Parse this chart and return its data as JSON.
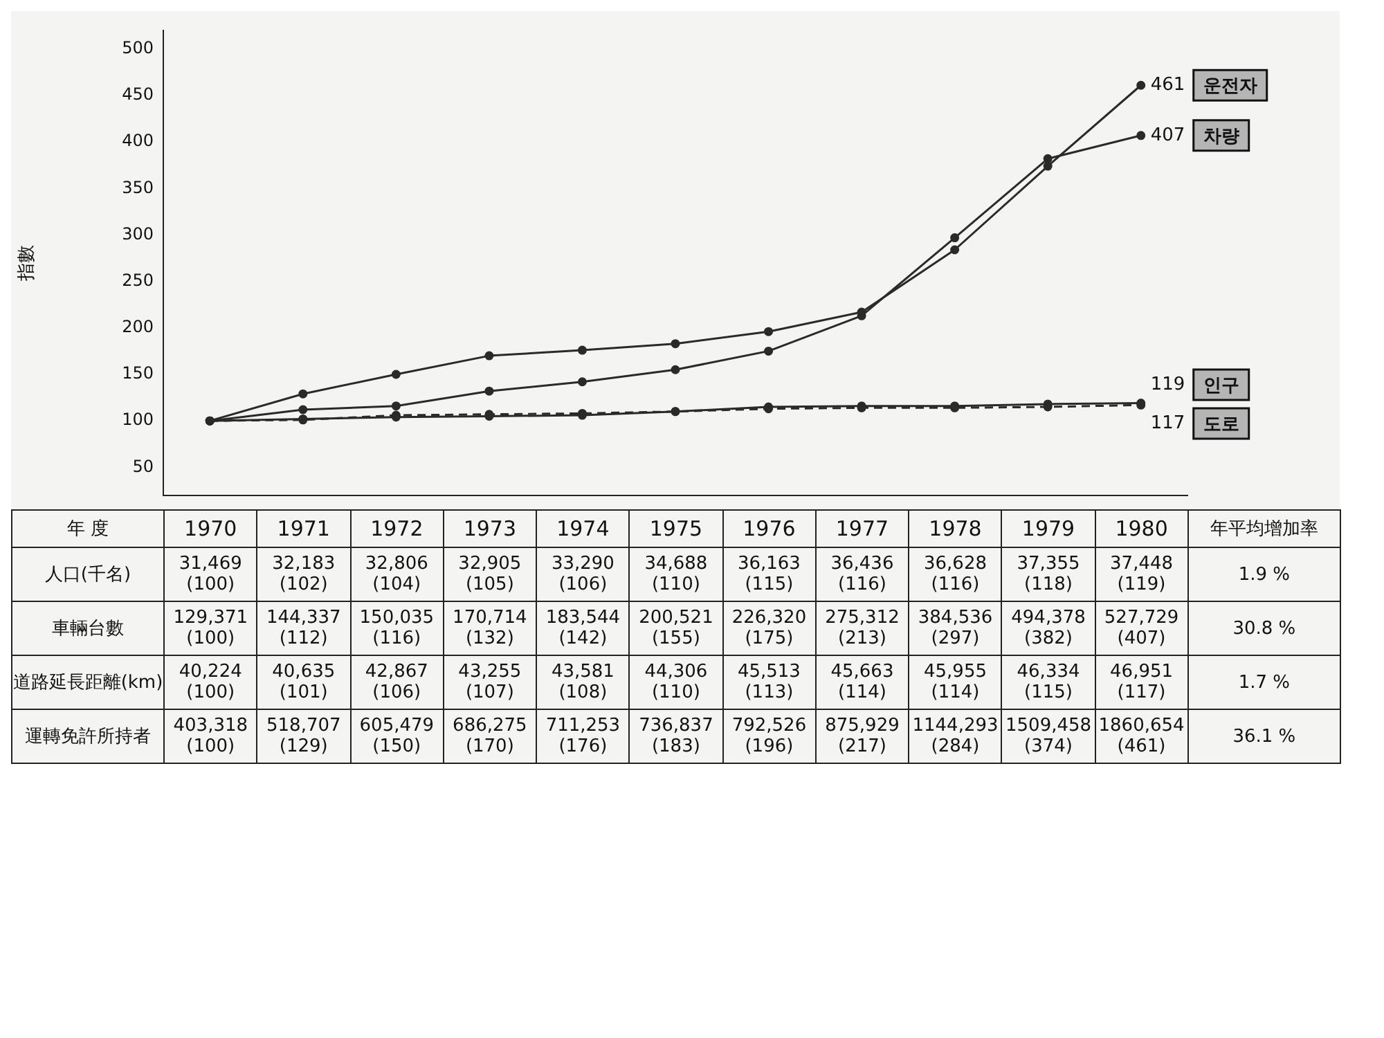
{
  "chart_data": {
    "type": "line",
    "ylabel": "指數",
    "categories": [
      "1970",
      "1971",
      "1972",
      "1973",
      "1974",
      "1975",
      "1976",
      "1977",
      "1978",
      "1979",
      "1980"
    ],
    "series": [
      {
        "name": "인구",
        "color": "#2a2a2a",
        "line_style": "solid",
        "values": [
          100,
          102,
          104,
          105,
          106,
          110,
          115,
          116,
          116,
          118,
          119
        ],
        "value_labels": [
          "31,469\n(100)",
          "32,183\n(102)",
          "32,806\n(104)",
          "32,905\n(105)",
          "33,290\n(106)",
          "34,688\n(110)",
          "36,163\n(115)",
          "36,436\n(116)",
          "36,628\n(116)",
          "37,355\n(118)",
          "37,448\n(119)"
        ]
      },
      {
        "name": "차량",
        "color": "#2a2a2a",
        "line_style": "solid",
        "values": [
          100,
          112,
          116,
          132,
          142,
          155,
          175,
          213,
          297,
          382,
          407
        ],
        "value_labels": [
          "129,371\n(100)",
          "144,337\n(112)",
          "150,035\n(116)",
          "170,714\n(132)",
          "183,544\n(142)",
          "200,521\n(155)",
          "226,320\n(175)",
          "275,312\n(213)",
          "384,536\n(297)",
          "494,378\n(382)",
          "527,729\n(407)"
        ]
      },
      {
        "name": "도로",
        "color": "#2a2a2a",
        "line_style": "dashed",
        "values": [
          100,
          101,
          106,
          107,
          108,
          110,
          113,
          114,
          114,
          115,
          117
        ],
        "value_labels": [
          "40,224\n(100)",
          "40,635\n(101)",
          "42,867\n(106)",
          "43,255\n(107)",
          "43,581\n(108)",
          "44,306\n(110)",
          "45,513\n(113)",
          "45,663\n(114)",
          "45,955\n(114)",
          "46,334\n(115)",
          "46,951\n(117)"
        ]
      },
      {
        "name": "운전자",
        "color": "#2a2a2a",
        "line_style": "solid",
        "values": [
          100,
          129,
          150,
          170,
          176,
          183,
          196,
          217,
          284,
          374,
          461
        ],
        "value_labels": [
          "403,318\n(100)",
          "518,707\n(129)",
          "605,479\n(150)",
          "686,275\n(170)",
          "711,253\n(176)",
          "736,837\n(183)",
          "792,526\n(196)",
          "875,929\n(217)",
          "1144,293\n(284)",
          "1509,458\n(374)",
          "1860,654\n(461)"
        ]
      }
    ],
    "ylim": [
      20,
      520
    ],
    "yticks": [
      50,
      100,
      150,
      200,
      250,
      300,
      350,
      400,
      450,
      500
    ],
    "marker": "circle",
    "grid": false,
    "legend": false,
    "annotations": [
      {
        "text": "461",
        "x": "1980",
        "y": 461
      },
      {
        "text": "407",
        "x": "1980",
        "y": 407
      },
      {
        "text": "119",
        "x": "1980",
        "y": 119
      },
      {
        "text": "117",
        "x": "1980",
        "y": 117
      },
      "年 度",
      "年平均增加率",
      "人口(千名)",
      "1.9 %",
      "車輛台數",
      "30.8 %",
      "道路延長距離(km)",
      "1.7 %",
      "運轉免許所持者",
      "36.1 %"
    ]
  }
}
